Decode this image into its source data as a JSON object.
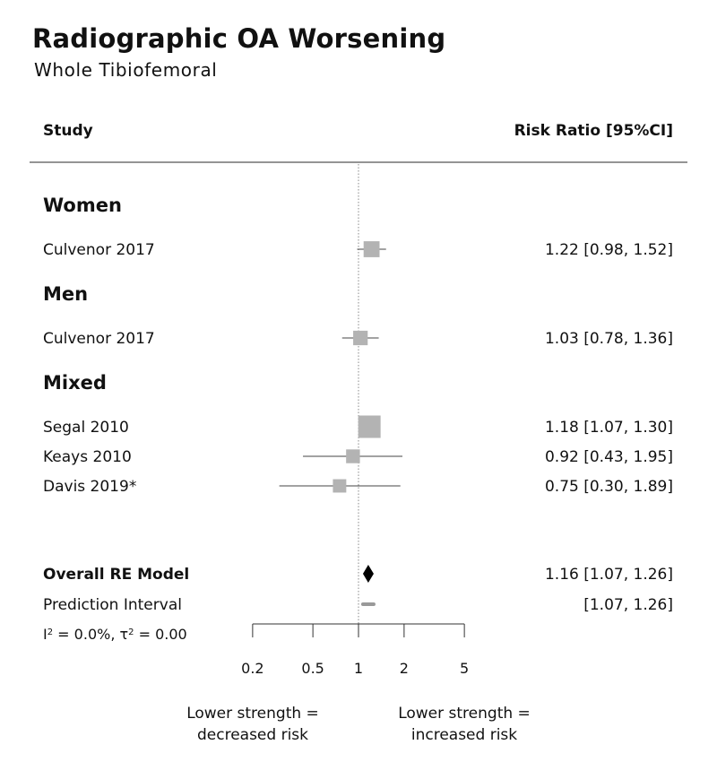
{
  "title": "Radiographic OA Worsening",
  "subtitle": "Whole Tibiofemoral",
  "columns": {
    "study": "Study",
    "effect": "Risk Ratio [95%CI]"
  },
  "chart_data": {
    "type": "forest",
    "scale": "log",
    "xlim": [
      0.2,
      5
    ],
    "reference": 1,
    "x_ticks": [
      {
        "value": 0.2,
        "label": "0.2"
      },
      {
        "value": 0.5,
        "label": "0.5"
      },
      {
        "value": 1,
        "label": "1"
      },
      {
        "value": 2,
        "label": "2"
      },
      {
        "value": 5,
        "label": "5"
      }
    ],
    "groups": [
      {
        "name": "Women",
        "studies": [
          {
            "study": "Culvenor 2017",
            "rr": 1.22,
            "lo": 0.98,
            "hi": 1.52,
            "label": "1.22 [0.98, 1.52]",
            "weight": 0.55
          }
        ]
      },
      {
        "name": "Men",
        "studies": [
          {
            "study": "Culvenor 2017",
            "rr": 1.03,
            "lo": 0.78,
            "hi": 1.36,
            "label": "1.03 [0.78, 1.36]",
            "weight": 0.45
          }
        ]
      },
      {
        "name": "Mixed",
        "studies": [
          {
            "study": "Segal 2010",
            "rr": 1.18,
            "lo": 1.07,
            "hi": 1.3,
            "label": "1.18 [1.07, 1.30]",
            "weight": 1.0
          },
          {
            "study": "Keays 2010",
            "rr": 0.92,
            "lo": 0.43,
            "hi": 1.95,
            "label": "0.92 [0.43, 1.95]",
            "weight": 0.4
          },
          {
            "study": "Davis 2019*",
            "rr": 0.75,
            "lo": 0.3,
            "hi": 1.89,
            "label": "0.75 [0.30, 1.89]",
            "weight": 0.37
          }
        ]
      }
    ],
    "overall": {
      "label": "Overall RE Model",
      "rr": 1.16,
      "lo": 1.07,
      "hi": 1.26,
      "text": "1.16 [1.07, 1.26]"
    },
    "prediction": {
      "label": "Prediction Interval",
      "lo": 1.07,
      "hi": 1.26,
      "text": "[1.07, 1.26]"
    },
    "heterogeneity": {
      "I2": "0.0%",
      "tau2": "0.00"
    },
    "direction_labels": {
      "left": [
        "Lower strength =",
        "decreased risk"
      ],
      "right": [
        "Lower strength =",
        "increased risk"
      ]
    },
    "colors": {
      "study_marker": "#b3b3b3",
      "overall_marker": "#000000",
      "axis": "#333333",
      "reference": "#888888"
    }
  }
}
